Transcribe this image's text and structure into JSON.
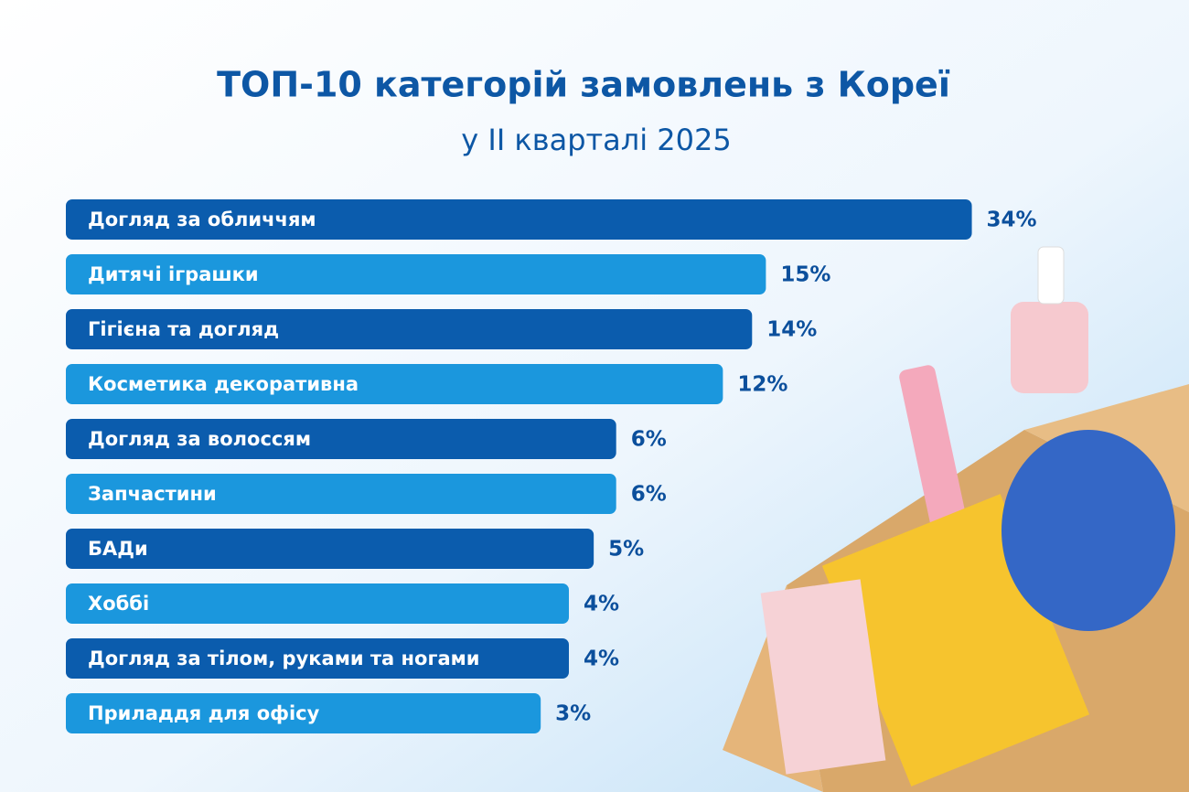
{
  "chart_data": {
    "type": "bar",
    "orientation": "horizontal",
    "title": "ТОП-10 категорій замовлень з Кореї",
    "subtitle": "у II кварталі 2025",
    "categories": [
      "Догляд за обличчям",
      "Дитячі іграшки",
      "Гігієна та догляд",
      "Косметика декоративна",
      "Догляд за волоссям",
      "Запчастини",
      "БАДи",
      "Хоббі",
      "Догляд за тілом, руками та ногами",
      "Приладдя для офісу"
    ],
    "values": [
      34,
      15,
      14,
      12,
      6,
      6,
      5,
      4,
      4,
      3
    ],
    "value_labels": [
      "34%",
      "15%",
      "14%",
      "12%",
      "6%",
      "6%",
      "5%",
      "4%",
      "4%",
      "3%"
    ],
    "colors": [
      "#0b5cad",
      "#1b97dd",
      "#0b5cad",
      "#1b97dd",
      "#0b5cad",
      "#1b97dd",
      "#0b5cad",
      "#1b97dd",
      "#0b5cad",
      "#1b97dd"
    ]
  }
}
